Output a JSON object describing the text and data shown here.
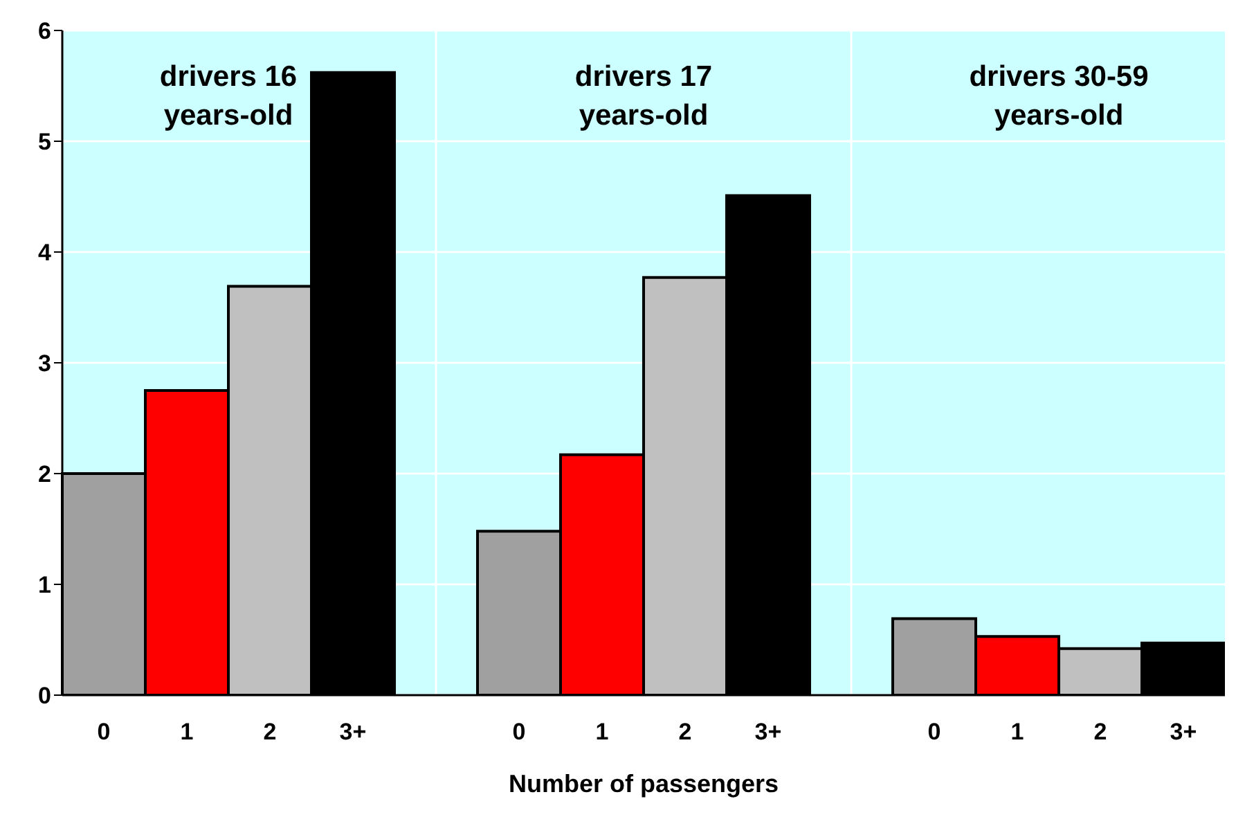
{
  "chart_data": {
    "type": "bar",
    "xlabel": "Number of passengers",
    "categories": [
      "0",
      "1",
      "2",
      "3+",
      null,
      "0",
      "1",
      "2",
      "3+",
      null,
      "0",
      "1",
      "2",
      "3+"
    ],
    "values": [
      2.0,
      2.75,
      3.69,
      5.62,
      null,
      1.48,
      2.17,
      3.77,
      4.51,
      null,
      0.69,
      0.53,
      0.42,
      0.47
    ],
    "colors": [
      "#a0a0a0",
      "#ff0000",
      "#c0c0c0",
      "#000000",
      null,
      "#a0a0a0",
      "#ff0000",
      "#c0c0c0",
      "#000000",
      null,
      "#a0a0a0",
      "#ff0000",
      "#c0c0c0",
      "#000000"
    ],
    "ylim": [
      0,
      6
    ],
    "yticks": [
      0,
      1,
      2,
      3,
      4,
      5,
      6
    ],
    "grid": true,
    "annotations": [
      "drivers 16\nyears-old",
      "drivers 17\nyears-old",
      "drivers 30-59\nyears-old"
    ]
  }
}
